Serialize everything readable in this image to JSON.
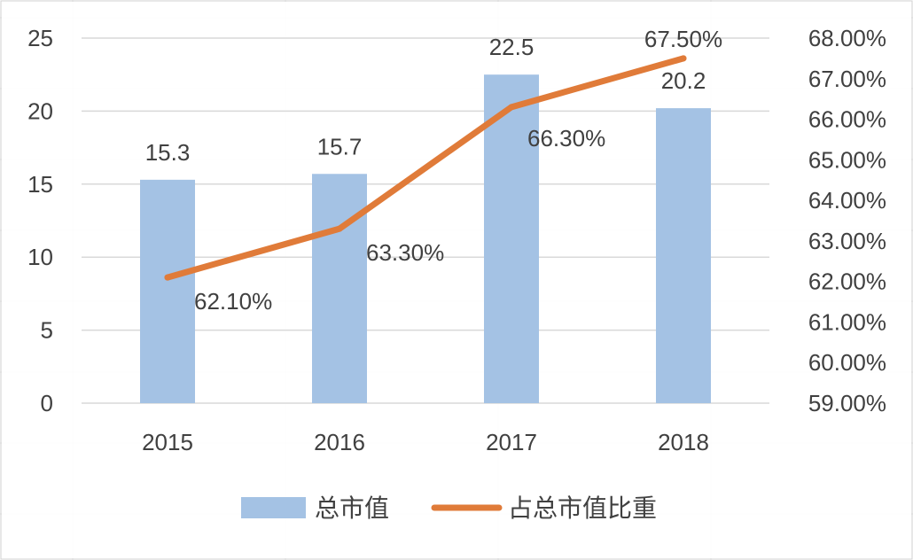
{
  "chart_data": {
    "type": "bar",
    "categories": [
      "2015",
      "2016",
      "2017",
      "2018"
    ],
    "series": [
      {
        "name": "总市值",
        "type": "bar",
        "axis": "left",
        "values": [
          15.3,
          15.7,
          22.5,
          20.2
        ],
        "labels": [
          "15.3",
          "15.7",
          "22.5",
          "20.2"
        ],
        "color": "#a4c2e4"
      },
      {
        "name": "占总市值比重",
        "type": "line",
        "axis": "right",
        "values": [
          62.1,
          63.3,
          66.3,
          67.5
        ],
        "labels": [
          "62.10%",
          "63.30%",
          "66.30%",
          "67.50%"
        ],
        "color": "#e07b39"
      }
    ],
    "y_left": {
      "min": 0,
      "max": 25,
      "ticks": [
        "0",
        "5",
        "10",
        "15",
        "20",
        "25"
      ]
    },
    "y_right": {
      "min": 59,
      "max": 68,
      "ticks": [
        "59.00%",
        "60.00%",
        "61.00%",
        "62.00%",
        "63.00%",
        "64.00%",
        "65.00%",
        "66.00%",
        "67.00%",
        "68.00%"
      ]
    },
    "grid": true,
    "legend_position": "bottom",
    "colors": {
      "gridline": "#d9d9d9",
      "text": "#404040",
      "outer_grid": "#e6e6e6"
    }
  }
}
